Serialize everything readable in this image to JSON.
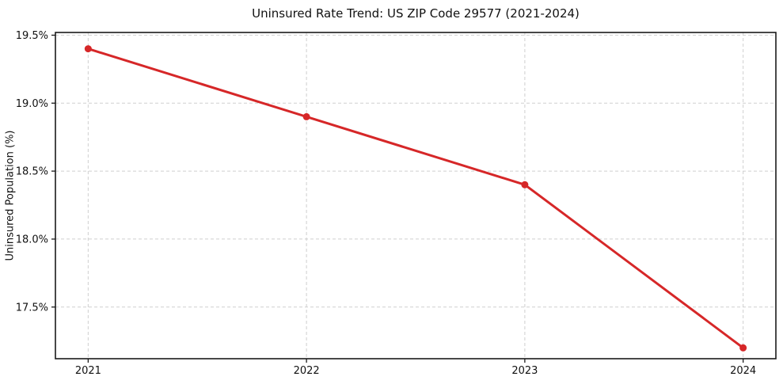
{
  "chart_data": {
    "type": "line",
    "title": "Uninsured Rate Trend: US ZIP Code 29577 (2021-2024)",
    "xlabel": "",
    "ylabel": "Uninsured Population (%)",
    "categories": [
      "2021",
      "2022",
      "2023",
      "2024"
    ],
    "x": [
      2021,
      2022,
      2023,
      2024
    ],
    "series": [
      {
        "name": "Uninsured rate",
        "values": [
          19.4,
          18.9,
          18.4,
          17.2
        ]
      }
    ],
    "y_ticks": [
      "19.5%",
      "19.0%",
      "18.5%",
      "18.0%",
      "17.5%"
    ],
    "y_tick_values": [
      19.5,
      19.0,
      18.5,
      18.0,
      17.5
    ],
    "xlim": [
      2020.85,
      2024.15
    ],
    "ylim": [
      17.12,
      19.52
    ],
    "grid": true,
    "grid_style": "dashed",
    "legend": "none",
    "line_color": "#d62728",
    "marker": "circle",
    "spine_color": "#1a1a1a",
    "grid_color": "#cfcfcf",
    "background": "#ffffff"
  }
}
